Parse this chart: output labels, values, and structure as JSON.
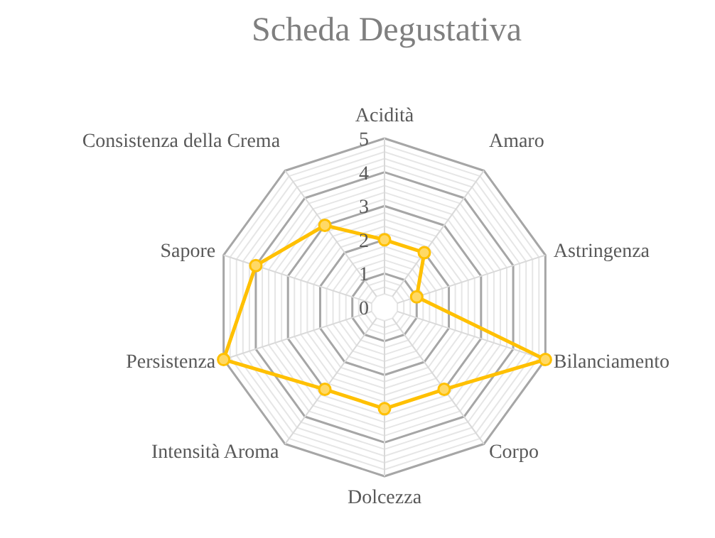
{
  "chart_data": {
    "type": "radar",
    "title": "Scheda Degustativa",
    "categories": [
      "Acidità",
      "Amaro",
      "Astringenza",
      "Bilanciamento",
      "Corpo",
      "Dolcezza",
      "Intensità Aroma",
      "Persistenza",
      "Sapore",
      "Consistenza della Crema"
    ],
    "series": [
      {
        "color": "#ffc000",
        "values": [
          2,
          2,
          1,
          5,
          3,
          3,
          3,
          5,
          4,
          3
        ]
      }
    ],
    "ylim": [
      0,
      5
    ],
    "yticks": [
      0,
      1,
      2,
      3,
      4,
      5
    ],
    "grid": true,
    "marker": "circle"
  }
}
